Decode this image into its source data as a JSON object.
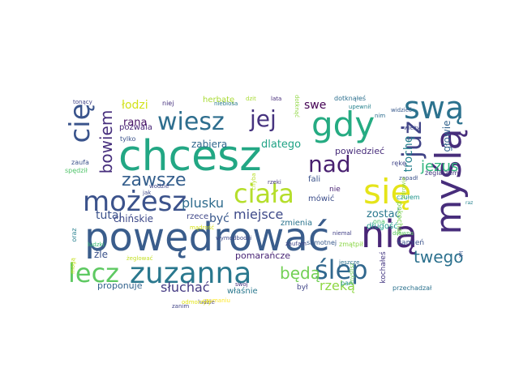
{
  "words": [
    {
      "text": "powędrować",
      "color": "#3a5d8c"
    },
    {
      "text": "chcesz",
      "color": "#22a784"
    },
    {
      "text": "zuzanna",
      "color": "#2a788e"
    },
    {
      "text": "możesz",
      "color": "#3b528b"
    },
    {
      "text": "nią",
      "color": "#482576"
    },
    {
      "text": "myślą",
      "color": "#472d7b"
    },
    {
      "text": "ciała",
      "color": "#b5de2b"
    },
    {
      "text": "się",
      "color": "#e5e419"
    },
    {
      "text": "gdy",
      "color": "#25ab82"
    },
    {
      "text": "wiesz",
      "color": "#2e6e8e"
    },
    {
      "text": "swą",
      "color": "#2c728e"
    },
    {
      "text": "ślep",
      "color": "#31688e"
    },
    {
      "text": "lecz",
      "color": "#5ec962"
    },
    {
      "text": "cię",
      "color": "#3a548c"
    },
    {
      "text": "jej",
      "color": "#46337f"
    },
    {
      "text": "już",
      "color": "#414487"
    },
    {
      "text": "nad",
      "color": "#481f70"
    },
    {
      "text": "zawsze",
      "color": "#355f8d"
    },
    {
      "text": "bowiem",
      "color": "#472f7d"
    },
    {
      "text": "będą",
      "color": "#73d056"
    },
    {
      "text": "twego",
      "color": "#2c718e"
    },
    {
      "text": "miejsce",
      "color": "#3e4a89"
    },
    {
      "text": "plusku",
      "color": "#2f6c8e"
    },
    {
      "text": "jezus",
      "color": "#2fb47c"
    },
    {
      "text": "trochę",
      "color": "#26818e"
    },
    {
      "text": "rzeką",
      "color": "#8fd744"
    },
    {
      "text": "słuchać",
      "color": "#443a83"
    },
    {
      "text": "łodzi",
      "color": "#d2e21b"
    },
    {
      "text": "rana",
      "color": "#471365"
    },
    {
      "text": "zabiera",
      "color": "#31688e"
    },
    {
      "text": "dlatego",
      "color": "#20a386"
    },
    {
      "text": "tutaj",
      "color": "#3b528b"
    },
    {
      "text": "być",
      "color": "#38588c"
    },
    {
      "text": "zostać",
      "color": "#2a788e"
    },
    {
      "text": "swe",
      "color": "#440154"
    },
    {
      "text": "głowie",
      "color": "#33638d"
    },
    {
      "text": "powiedzieć",
      "color": "#472c7a"
    },
    {
      "text": "pomarańcze",
      "color": "#482475"
    },
    {
      "text": "proponuje",
      "color": "#33638d"
    },
    {
      "text": "źle",
      "color": "#3b528b"
    },
    {
      "text": "chińskie",
      "color": "#3e4989"
    },
    {
      "text": "herbatę",
      "color": "#a8db34"
    },
    {
      "text": "pozwala",
      "color": "#482576"
    },
    {
      "text": "zmienia",
      "color": "#2b748e"
    },
    {
      "text": "mówić",
      "color": "#3d4e8a"
    },
    {
      "text": "fali",
      "color": "#3b528b"
    },
    {
      "text": "nie",
      "color": "#482173"
    },
    {
      "text": "rzece",
      "color": "#3f4788"
    },
    {
      "text": "właśnie",
      "color": "#2a788e"
    },
    {
      "text": "był",
      "color": "#404688"
    },
    {
      "text": "długość",
      "color": "#1f9a8a"
    },
    {
      "text": "dotknąłeś",
      "color": "#2d708e"
    },
    {
      "text": "pokochać",
      "color": "#7ad151"
    },
    {
      "text": "kamień",
      "color": "#3b528b"
    },
    {
      "text": "kochałeś",
      "color": "#453882"
    },
    {
      "text": "przechadzał",
      "color": "#2c728e"
    },
    {
      "text": "czułem",
      "color": "#1f958b"
    },
    {
      "text": "żeglarzem",
      "color": "#453781"
    },
    {
      "text": "samotnej",
      "color": "#38598c"
    },
    {
      "text": "zmątpił",
      "color": "#8bd646"
    },
    {
      "text": "zaufa",
      "color": "#3b528b"
    },
    {
      "text": "oraz",
      "color": "#277f8e"
    },
    {
      "text": "ludzki",
      "color": "#3dbc74"
    },
    {
      "text": "spędził",
      "color": "#50c46a"
    },
    {
      "text": "tonący",
      "color": "#414487"
    },
    {
      "text": "tylko",
      "color": "#3b528b"
    },
    {
      "text": "niej",
      "color": "#46327e"
    },
    {
      "text": "dzit",
      "color": "#a8db34"
    },
    {
      "text": "lata",
      "color": "#472c7a"
    },
    {
      "text": "upewnił",
      "color": "#26828e"
    },
    {
      "text": "widzieć",
      "color": "#38598c"
    },
    {
      "text": "wieży",
      "color": "#3f4889"
    },
    {
      "text": "rękę",
      "color": "#404588"
    },
    {
      "text": "zapadł",
      "color": "#3b528b"
    },
    {
      "text": "pan",
      "color": "#20928c"
    },
    {
      "text": "myślisz",
      "color": "#6ece58"
    },
    {
      "text": "jeszcze",
      "color": "#2c718e"
    },
    {
      "text": "niemal",
      "color": "#424086"
    },
    {
      "text": "zaufam",
      "color": "#414487"
    },
    {
      "text": "rzeki",
      "color": "#453882"
    },
    {
      "text": "swoj",
      "color": "#46317e"
    },
    {
      "text": "ludzie",
      "color": "#433e85"
    },
    {
      "text": "zanim",
      "color": "#414487"
    },
    {
      "text": "żeglować",
      "color": "#c2df23"
    },
    {
      "text": "mądrość",
      "color": "#d8e219"
    },
    {
      "text": "wymodbodzi",
      "color": "#3e4a89"
    },
    {
      "text": "czumaniu",
      "color": "#fde725"
    },
    {
      "text": "niebiosa",
      "color": "#2a788e"
    },
    {
      "text": "chyba",
      "color": "#b8de29"
    },
    {
      "text": "wodzie",
      "color": "#3f4788"
    },
    {
      "text": "jak",
      "color": "#3e4989"
    },
    {
      "text": "mogą",
      "color": "#c5e021"
    },
    {
      "text": "zdrowie",
      "color": "#95d840"
    },
    {
      "text": "drewna",
      "color": "#5cc863"
    },
    {
      "text": "ona",
      "color": "#4ac16d"
    },
    {
      "text": "odmorzyły",
      "color": "#e2e418"
    },
    {
      "text": "dotknąć",
      "color": "#90d743"
    },
    {
      "text": "nim",
      "color": "#2e6d8e"
    },
    {
      "text": "raz",
      "color": "#26828e"
    },
    {
      "text": "lek",
      "color": "#3a538b"
    }
  ]
}
